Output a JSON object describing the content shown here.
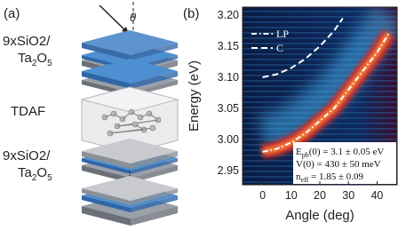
{
  "panel_a": {
    "label": "(a)",
    "angle_symbol": "θ",
    "stack_top": {
      "prefix": "9xSiO2/",
      "ta": "Ta",
      "ta_sub": "2",
      "o": "O",
      "o_sub": "5"
    },
    "middle": "TDAF",
    "stack_bottom": {
      "prefix": "9xSiO2/",
      "ta": "Ta",
      "ta_sub": "2",
      "o": "O",
      "o_sub": "5"
    }
  },
  "chart_data": {
    "type": "line",
    "panel_label": "(b)",
    "x_label": "Angle (deg)",
    "y_label": "Energy (eV)",
    "xlim": [
      -7,
      47
    ],
    "ylim": [
      2.927,
      3.213
    ],
    "xticks": [
      0,
      10,
      20,
      30,
      40
    ],
    "yticks": [
      {
        "value": 2.95,
        "label": "2.95"
      },
      {
        "value": 3.0,
        "label": "3.00"
      },
      {
        "value": 3.05,
        "label": "3.05"
      },
      {
        "value": 3.1,
        "label": "3.10"
      },
      {
        "value": 3.15,
        "label": "3.15"
      },
      {
        "value": 3.2,
        "label": "3.20"
      }
    ],
    "legend": "upper left",
    "series": [
      {
        "name": "LP",
        "color": "#ffffff",
        "dash": "dash-dot",
        "x": [
          0,
          5,
          10,
          15,
          20,
          25,
          30,
          35,
          40,
          44
        ],
        "values": [
          2.98,
          2.985,
          2.995,
          3.01,
          3.03,
          3.05,
          3.08,
          3.11,
          3.14,
          3.17
        ]
      },
      {
        "name": "C",
        "color": "#ffffff",
        "dash": "dashed",
        "x": [
          0,
          5,
          10,
          15,
          20,
          25,
          28
        ],
        "values": [
          3.1,
          3.105,
          3.115,
          3.13,
          3.15,
          3.175,
          3.195
        ]
      }
    ],
    "annotations": [
      {
        "text": "E",
        "sub": "ph",
        "rest": "(0) = 3.1 ± 0.05 eV"
      },
      {
        "text": "V(0) = 430 ± 50 meV"
      },
      {
        "text": "n",
        "sub": "eff",
        "rest": " = 1.85 ± 0.09"
      }
    ]
  }
}
